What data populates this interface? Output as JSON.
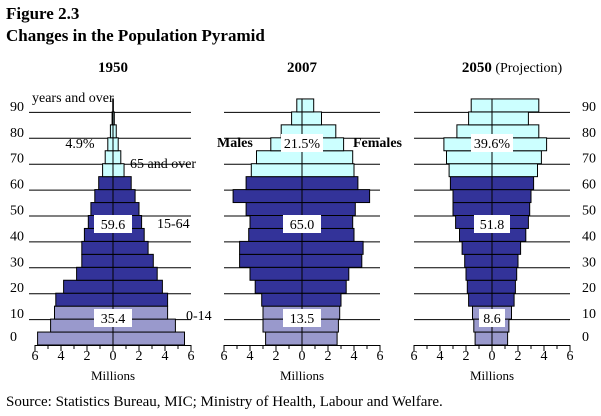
{
  "figure_number": "Figure 2.3",
  "title": "Changes in the Population Pyramid",
  "source": "Source:  Statistics Bureau, MIC;  Ministry of Health, Labour and Welfare.",
  "colors": {
    "age_65_over": "#ccffff",
    "age_15_64": "#333399",
    "age_0_14": "#9999cc",
    "outline": "#000000"
  },
  "chart_data": {
    "type": "bar",
    "subtype": "population-pyramid",
    "title": "Changes in the Population Pyramid",
    "age_axis_ticks": [
      "0",
      "10",
      "20",
      "30",
      "40",
      "50",
      "60",
      "70",
      "80",
      "90"
    ],
    "age_groups": [
      "0-4",
      "5-9",
      "10-14",
      "15-19",
      "20-24",
      "25-29",
      "30-34",
      "35-39",
      "40-44",
      "45-49",
      "50-54",
      "55-59",
      "60-64",
      "65-69",
      "70-74",
      "75-79",
      "80-84",
      "85-89",
      "90+"
    ],
    "x_ticks": [
      "6",
      "4",
      "2",
      "0",
      "2",
      "4",
      "6"
    ],
    "xlabel": "Millions",
    "xlim": [
      -6,
      6
    ],
    "side_labels": {
      "left": "Males",
      "right": "Females"
    },
    "age_band_labels": {
      "old": "65 and over",
      "working": "15-64",
      "young": "0-14",
      "top": "years and over",
      "top_tick": "90"
    },
    "panels": [
      {
        "title": "1950",
        "title_suffix": "",
        "shares": {
          "old": "4.9%",
          "working": "59.6",
          "young": "35.4"
        },
        "males": [
          5.8,
          4.8,
          4.5,
          4.4,
          3.8,
          2.8,
          2.4,
          2.4,
          2.2,
          1.9,
          1.7,
          1.4,
          1.1,
          0.8,
          0.6,
          0.4,
          0.2,
          0.07,
          0.02
        ],
        "females": [
          5.5,
          4.8,
          4.2,
          4.2,
          3.8,
          3.4,
          3.1,
          2.7,
          2.4,
          2.2,
          2.0,
          1.7,
          1.4,
          0.85,
          0.6,
          0.4,
          0.25,
          0.1,
          0.03
        ]
      },
      {
        "title": "2007",
        "title_suffix": "",
        "shares": {
          "old": "21.5%",
          "working": "65.0",
          "young": "13.5"
        },
        "males": [
          2.8,
          3.0,
          3.0,
          3.1,
          3.6,
          4.0,
          4.8,
          4.8,
          4.1,
          4.0,
          4.3,
          5.3,
          4.3,
          3.9,
          3.5,
          2.4,
          1.6,
          0.8,
          0.4
        ],
        "females": [
          2.7,
          2.8,
          2.9,
          3.0,
          3.4,
          3.6,
          4.6,
          4.7,
          4.0,
          3.9,
          4.1,
          5.2,
          4.3,
          4.0,
          3.9,
          3.2,
          2.6,
          1.5,
          0.9
        ]
      },
      {
        "title": "2050",
        "title_suffix": "(Projection)",
        "shares": {
          "old": "39.6%",
          "working": "51.8",
          "young": "8.6"
        },
        "males": [
          1.3,
          1.4,
          1.5,
          1.8,
          1.9,
          2.0,
          2.1,
          2.3,
          2.5,
          2.8,
          3.0,
          3.0,
          3.2,
          3.3,
          3.5,
          3.7,
          2.7,
          1.8,
          1.6
        ],
        "females": [
          1.2,
          1.3,
          1.5,
          1.7,
          1.8,
          1.9,
          2.0,
          2.2,
          2.6,
          2.8,
          2.9,
          3.0,
          3.2,
          3.5,
          3.8,
          4.2,
          3.6,
          2.8,
          3.6
        ]
      }
    ]
  }
}
